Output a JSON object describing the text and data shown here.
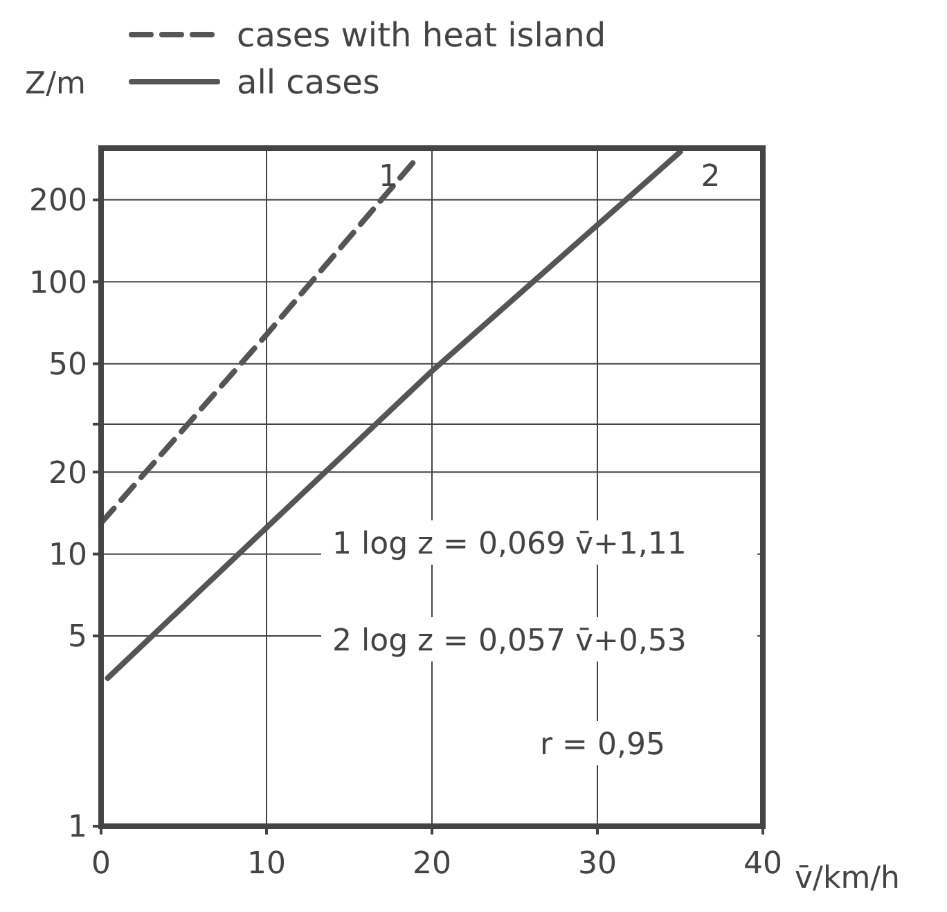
{
  "chart_data": {
    "type": "line",
    "xlabel": "v̄/km/h",
    "ylabel": "Z/m",
    "log": "y",
    "xlim": [
      0,
      40
    ],
    "xticks": [
      0,
      10,
      20,
      30,
      40
    ],
    "ylim": [
      1,
      310
    ],
    "yticks": [
      1,
      5,
      10,
      20,
      {
        "value": 30,
        "label": null
      },
      50,
      100,
      200
    ],
    "grid": true,
    "legend": "top left",
    "series": [
      {
        "name": "cases with heat island",
        "color": "#555555",
        "line_style": "dashed",
        "x": [
          0,
          10,
          19.2
        ],
        "values": [
          13,
          64,
          290
        ]
      },
      {
        "name": "all cases",
        "color": "#555555",
        "line_style": "solid",
        "x": [
          0.4,
          10,
          20,
          35
        ],
        "values": [
          3.5,
          12.5,
          47,
          300
        ]
      }
    ],
    "annotations": [
      "1",
      "2",
      "1  log z = 0,069 v̄+1,11",
      "2  log z = 0,057 v̄+0,53",
      "r = 0,95"
    ]
  }
}
